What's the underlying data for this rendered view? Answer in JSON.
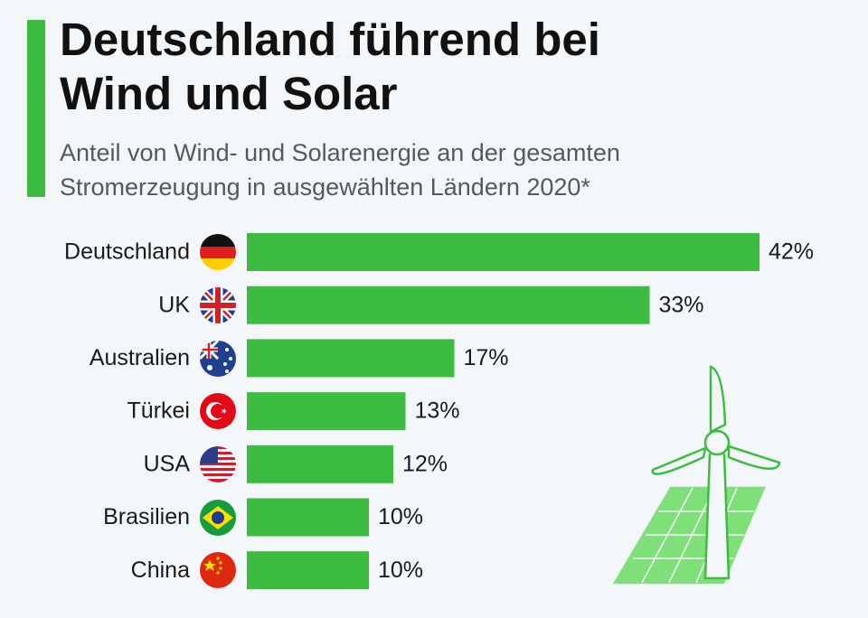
{
  "chart_data": {
    "type": "bar",
    "orientation": "horizontal",
    "title": "Deutschland führend bei Wind und Solar",
    "subtitle": "Anteil von Wind- und Solarenergie an der gesamten Stromerzeugung in ausgewählten Ländern 2020*",
    "categories": [
      "Deutschland",
      "UK",
      "Australien",
      "Türkei",
      "USA",
      "Brasilien",
      "China"
    ],
    "values": [
      42,
      33,
      17,
      13,
      12,
      10,
      10
    ],
    "value_labels": [
      "42%",
      "33%",
      "17%",
      "13%",
      "12%",
      "10%",
      "10%"
    ],
    "color": "#3dbd3f"
  }
}
